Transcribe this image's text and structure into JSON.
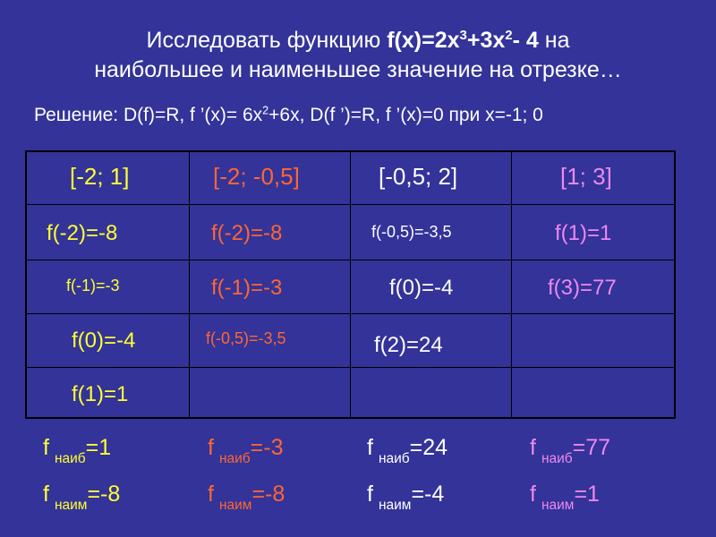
{
  "title": {
    "line1_text": "Исследовать функцию ",
    "line1_formula": "f(x)=2x",
    "line1_exp1": "3",
    "line1_mid": "+3x",
    "line1_exp2": "2",
    "line1_tail": "- 4",
    "line1_end": " на",
    "line2": "наибольшее и наименьшее значение на отрезке…"
  },
  "solution": {
    "part1": "Решение: D(f)=R,  f ’(x)= 6x",
    "exp": "2",
    "part2": "+6x, D(f ’)=R, f ’(x)=0 при x=-1; 0"
  },
  "colors": {
    "background": "#333399",
    "yellow": "#ffff33",
    "orange": "#ff6633",
    "white": "#ffffff",
    "pink": "#ee88ee",
    "grid": "#000000"
  },
  "table": {
    "headers": [
      "[-2; 1]",
      "[-2; -0,5]",
      "[-0,5; 2]",
      "[1; 3]"
    ],
    "col1": [
      "f(-2)=-8",
      "f(-1)=-3",
      "f(0)=-4",
      "f(1)=1"
    ],
    "col2": [
      "f(-2)=-8",
      "f(-1)=-3",
      "f(-0,5)=-3,5"
    ],
    "col3": [
      "f(-0,5)=-3,5",
      "f(0)=-4",
      "f(2)=24"
    ],
    "col4": [
      "f(1)=1",
      "f(3)=77"
    ]
  },
  "results": [
    {
      "f": "f",
      "max_sub": "наиб",
      "max_val": "=1",
      "min_sub": "наим",
      "min_val": "=-8"
    },
    {
      "f": "f",
      "max_sub": "наиб",
      "max_val": "=-3",
      "min_sub": "наим",
      "min_val": "=-8"
    },
    {
      "f": "f",
      "max_sub": "наиб",
      "max_val": "=24",
      "min_sub": "наим",
      "min_val": "=-4"
    },
    {
      "f": "f",
      "max_sub": "наиб",
      "max_val": "=77",
      "min_sub": "наим",
      "min_val": "=1"
    }
  ]
}
